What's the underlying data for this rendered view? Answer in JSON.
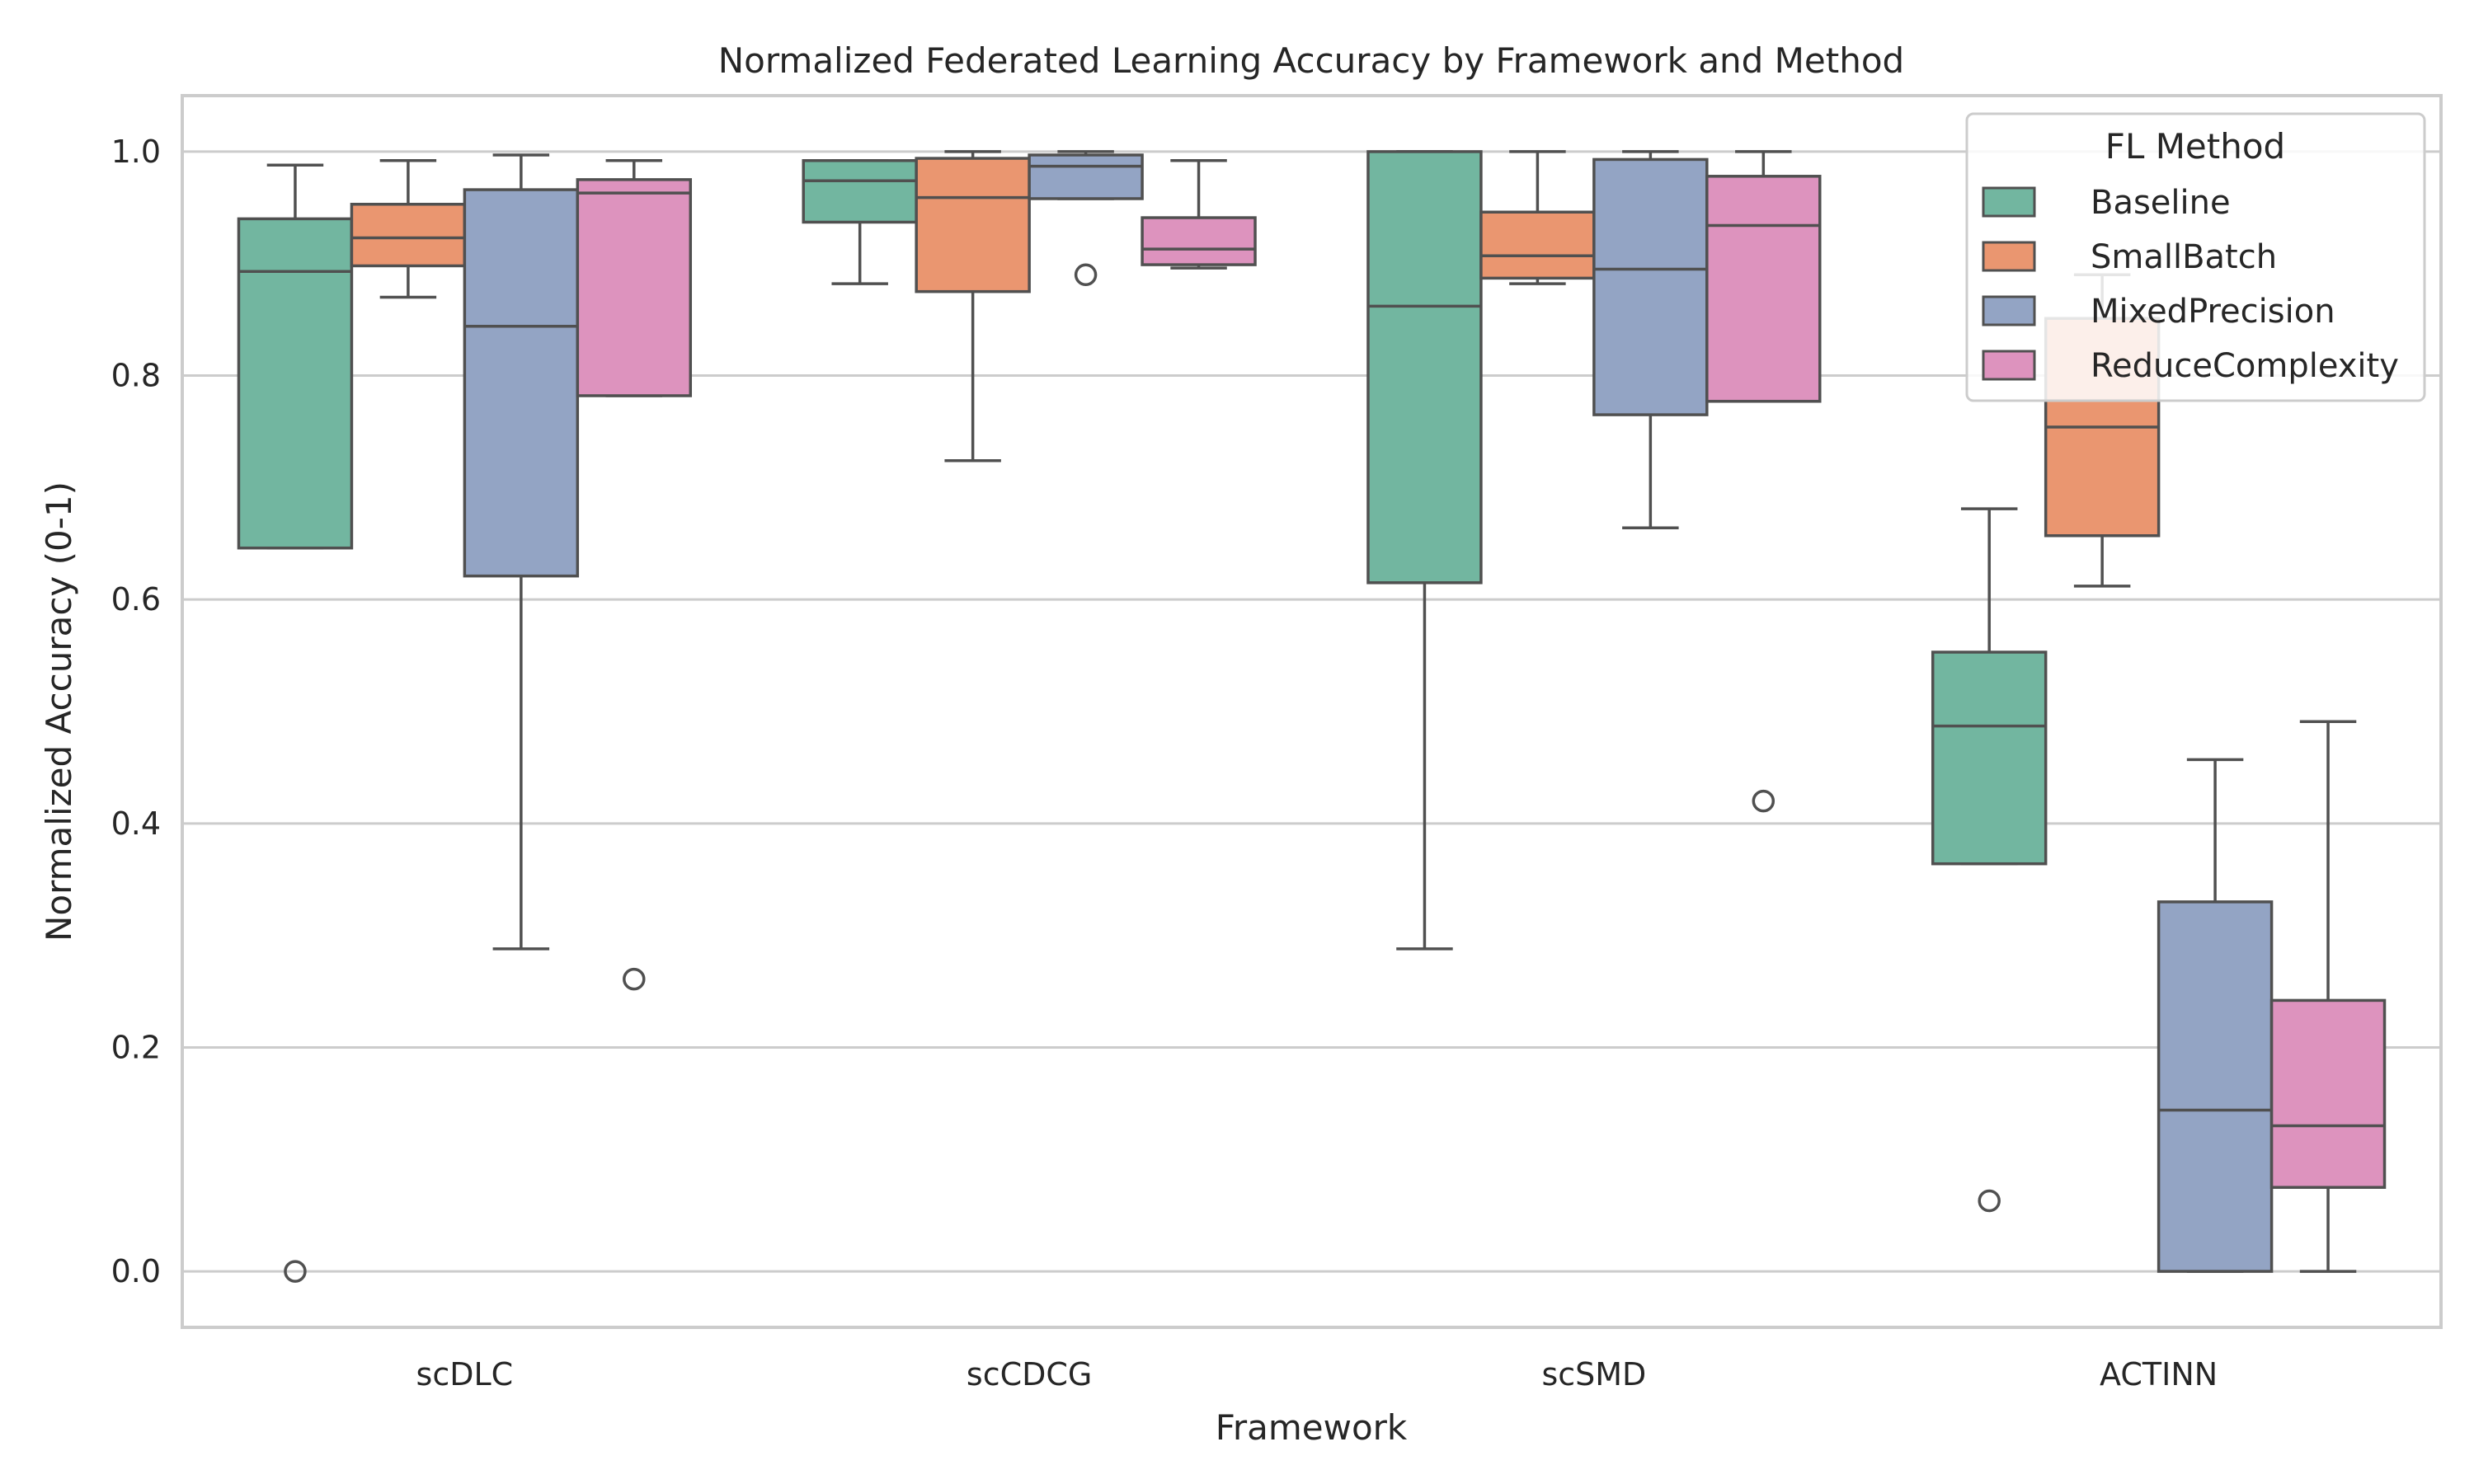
{
  "chart_data": {
    "type": "box",
    "title": "Normalized Federated Learning Accuracy by Framework and Method",
    "xlabel": "Framework",
    "ylabel": "Normalized Accuracy (0-1)",
    "ylim": [
      -0.05,
      1.05
    ],
    "yticks": [
      "0.0",
      "0.2",
      "0.4",
      "0.6",
      "0.8",
      "1.0"
    ],
    "grid": "horizontal",
    "categories": [
      "scDLC",
      "scCDCG",
      "scSMD",
      "ACTINN"
    ],
    "legend": {
      "title": "FL Method",
      "position": "top-right"
    },
    "series": [
      {
        "name": "Baseline",
        "color": "#72b6a0",
        "boxes": [
          {
            "whisker_low": 0.646,
            "q1": 0.646,
            "median": 0.893,
            "q3": 0.94,
            "whisker_high": 0.988,
            "outliers": [
              0.0
            ]
          },
          {
            "whisker_low": 0.882,
            "q1": 0.937,
            "median": 0.974,
            "q3": 0.992,
            "whisker_high": 0.992,
            "outliers": []
          },
          {
            "whisker_low": 0.288,
            "q1": 0.615,
            "median": 0.862,
            "q3": 1.0,
            "whisker_high": 1.0,
            "outliers": []
          },
          {
            "whisker_low": 0.364,
            "q1": 0.364,
            "median": 0.487,
            "q3": 0.553,
            "whisker_high": 0.681,
            "outliers": [
              0.063
            ]
          }
        ]
      },
      {
        "name": "SmallBatch",
        "color": "#ea9670",
        "boxes": [
          {
            "whisker_low": 0.87,
            "q1": 0.898,
            "median": 0.923,
            "q3": 0.953,
            "whisker_high": 0.992,
            "outliers": []
          },
          {
            "whisker_low": 0.724,
            "q1": 0.875,
            "median": 0.959,
            "q3": 0.994,
            "whisker_high": 1.0,
            "outliers": []
          },
          {
            "whisker_low": 0.882,
            "q1": 0.887,
            "median": 0.907,
            "q3": 0.946,
            "whisker_high": 1.0,
            "outliers": []
          },
          {
            "whisker_low": 0.612,
            "q1": 0.657,
            "median": 0.754,
            "q3": 0.851,
            "whisker_high": 0.89,
            "outliers": []
          }
        ]
      },
      {
        "name": "MixedPrecision",
        "color": "#93a4c4",
        "boxes": [
          {
            "whisker_low": 0.288,
            "q1": 0.621,
            "median": 0.844,
            "q3": 0.966,
            "whisker_high": 0.997,
            "outliers": []
          },
          {
            "whisker_low": 0.958,
            "q1": 0.958,
            "median": 0.987,
            "q3": 0.997,
            "whisker_high": 1.0,
            "outliers": [
              0.89
            ]
          },
          {
            "whisker_low": 0.664,
            "q1": 0.765,
            "median": 0.895,
            "q3": 0.993,
            "whisker_high": 1.0,
            "outliers": []
          },
          {
            "whisker_low": 0.0,
            "q1": 0.0,
            "median": 0.144,
            "q3": 0.33,
            "whisker_high": 0.457,
            "outliers": []
          }
        ]
      },
      {
        "name": "ReduceComplexity",
        "color": "#dd93be",
        "boxes": [
          {
            "whisker_low": 0.782,
            "q1": 0.782,
            "median": 0.963,
            "q3": 0.975,
            "whisker_high": 0.992,
            "outliers": [
              0.261
            ]
          },
          {
            "whisker_low": 0.896,
            "q1": 0.899,
            "median": 0.913,
            "q3": 0.941,
            "whisker_high": 0.992,
            "outliers": []
          },
          {
            "whisker_low": 0.777,
            "q1": 0.777,
            "median": 0.934,
            "q3": 0.978,
            "whisker_high": 1.0,
            "outliers": [
              0.42
            ]
          },
          {
            "whisker_low": 0.0,
            "q1": 0.075,
            "median": 0.13,
            "q3": 0.242,
            "whisker_high": 0.491,
            "outliers": []
          }
        ]
      }
    ]
  }
}
